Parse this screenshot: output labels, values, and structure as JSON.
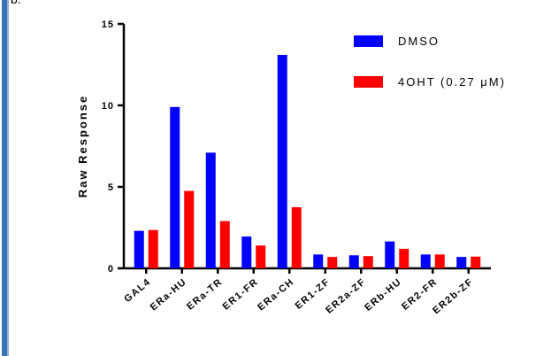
{
  "panel_letter": "b.",
  "chart_data": {
    "type": "bar",
    "title": "",
    "xlabel": "",
    "ylabel": "Raw Response",
    "ylim": [
      0,
      15
    ],
    "yticks": [
      "0",
      "5",
      "10",
      "15"
    ],
    "categories": [
      "GAL4",
      "ERa-HU",
      "ERa-TR",
      "ER1-FR",
      "ERa-CH",
      "ER1-ZF",
      "ER2a-ZF",
      "ERb-HU",
      "ER2-FR",
      "ER2b-ZF"
    ],
    "series": [
      {
        "name": "DMSO",
        "color": "#0000ff",
        "values": [
          2.3,
          9.9,
          7.1,
          1.95,
          13.1,
          0.85,
          0.8,
          1.65,
          0.85,
          0.7
        ]
      },
      {
        "name": "4OHT (0.27 μM)",
        "color": "#ff0000",
        "values": [
          2.35,
          4.75,
          2.9,
          1.4,
          3.75,
          0.7,
          0.75,
          1.2,
          0.85,
          0.72
        ]
      }
    ],
    "legend_position": "top-right",
    "grid": false
  }
}
